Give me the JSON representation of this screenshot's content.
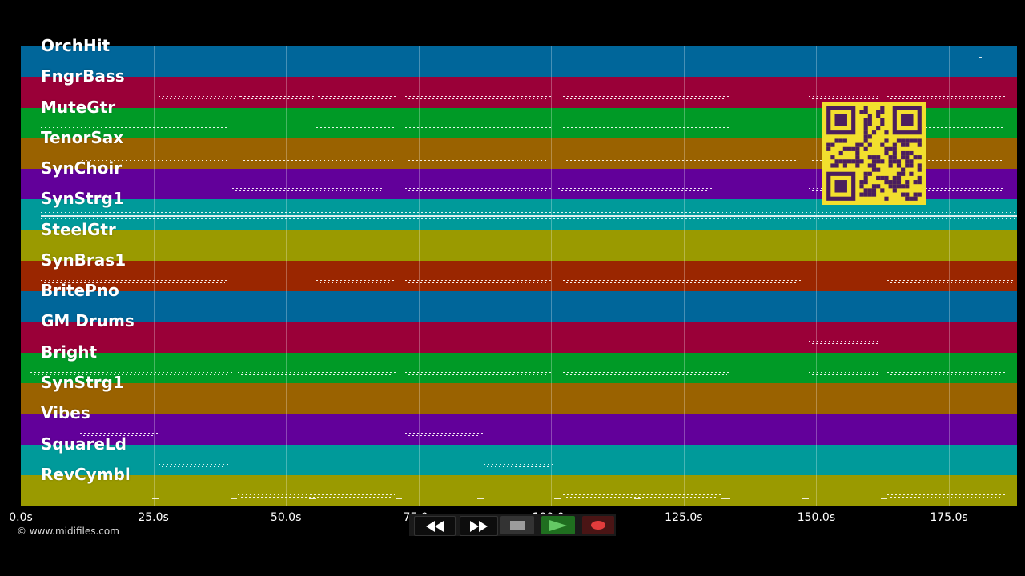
{
  "tracks": [
    {
      "name": "OrchHit",
      "color": "#00669a"
    },
    {
      "name": "FngrBass",
      "color": "#9a0038"
    },
    {
      "name": "MuteGtr",
      "color": "#009a26"
    },
    {
      "name": "TenorSax",
      "color": "#9a6200"
    },
    {
      "name": "SynChoir",
      "color": "#62009a"
    },
    {
      "name": "SynStrg1",
      "color": "#009a9a"
    },
    {
      "name": "SteelGtr",
      "color": "#9a9a00"
    },
    {
      "name": "SynBras1",
      "color": "#9a2600"
    },
    {
      "name": "BritePno",
      "color": "#00669a"
    },
    {
      "name": "GM Drums",
      "color": "#9a0038"
    },
    {
      "name": "Bright",
      "color": "#009a26"
    },
    {
      "name": "SynStrg1",
      "color": "#9a6200"
    },
    {
      "name": "Vibes",
      "color": "#62009a"
    },
    {
      "name": "SquareLd",
      "color": "#009a9a"
    },
    {
      "name": "RevCymbl",
      "color": "#9a9a00"
    }
  ],
  "timeline": {
    "ticks": [
      "0.0s",
      "25.0s",
      "50.0s",
      "75.0s",
      "100.0s",
      "125.0s",
      "150.0s",
      "175.0s"
    ],
    "tick_seconds": [
      0,
      25,
      50,
      75,
      100,
      125,
      150,
      175
    ],
    "max_seconds": 188
  },
  "copyright": "© www.midifiles.com",
  "transport": {
    "rewind_icon": "rewind-icon",
    "fast_forward_icon": "fast-forward-icon",
    "stop_icon": "stop-icon",
    "play_icon": "play-icon",
    "record_icon": "record-icon",
    "play_color": "#64c864",
    "record_color": "#e23c3c"
  },
  "qr_icon": "qr-code-icon"
}
